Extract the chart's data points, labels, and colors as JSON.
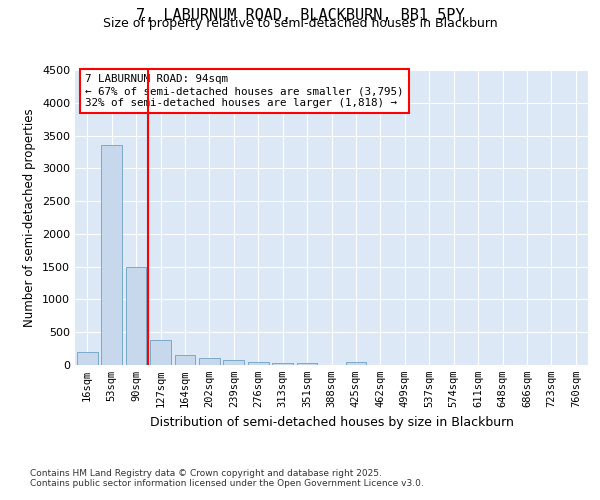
{
  "title1": "7, LABURNUM ROAD, BLACKBURN, BB1 5PY",
  "title2": "Size of property relative to semi-detached houses in Blackburn",
  "xlabel": "Distribution of semi-detached houses by size in Blackburn",
  "ylabel": "Number of semi-detached properties",
  "categories": [
    "16sqm",
    "53sqm",
    "90sqm",
    "127sqm",
    "164sqm",
    "202sqm",
    "239sqm",
    "276sqm",
    "313sqm",
    "351sqm",
    "388sqm",
    "425sqm",
    "462sqm",
    "499sqm",
    "537sqm",
    "574sqm",
    "611sqm",
    "648sqm",
    "686sqm",
    "723sqm",
    "760sqm"
  ],
  "values": [
    205,
    3350,
    1500,
    380,
    155,
    110,
    75,
    50,
    35,
    30,
    5,
    40,
    0,
    0,
    0,
    0,
    0,
    0,
    0,
    0,
    0
  ],
  "bar_color": "#c8d8ec",
  "bar_edge_color": "#7aaac8",
  "red_line_x": 2.5,
  "red_line_label": "7 LABURNUM ROAD: 94sqm",
  "annotation_line1": "← 67% of semi-detached houses are smaller (3,795)",
  "annotation_line2": "32% of semi-detached houses are larger (1,818) →",
  "ylim": [
    0,
    4500
  ],
  "yticks": [
    0,
    500,
    1000,
    1500,
    2000,
    2500,
    3000,
    3500,
    4000,
    4500
  ],
  "footnote1": "Contains HM Land Registry data © Crown copyright and database right 2025.",
  "footnote2": "Contains public sector information licensed under the Open Government Licence v3.0.",
  "fig_bg_color": "#ffffff",
  "plot_bg_color": "#dce8f5"
}
